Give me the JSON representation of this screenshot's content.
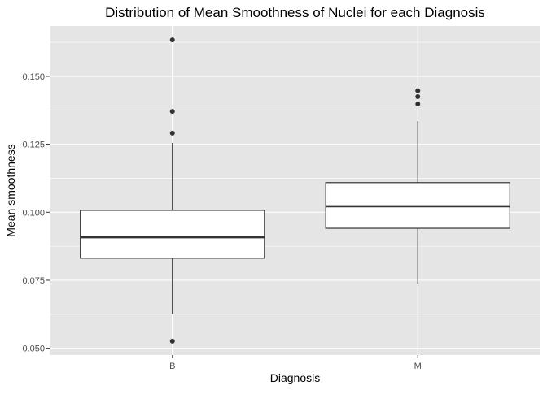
{
  "chart_data": {
    "type": "boxplot",
    "title": "Distribution of Mean Smoothness of Nuclei for each Diagnosis",
    "xlabel": "Diagnosis",
    "ylabel": "Mean smoothness",
    "categories": [
      "B",
      "M"
    ],
    "ylim": [
      0.0475,
      0.1685
    ],
    "y_ticks": [
      0.05,
      0.075,
      0.1,
      0.125,
      0.15
    ],
    "y_tick_labels": [
      "0.050",
      "0.075",
      "0.100",
      "0.125",
      "0.150"
    ],
    "grid": true,
    "legend": "none",
    "boxes": [
      {
        "category": "B",
        "whisker_low": 0.0626,
        "q1": 0.0831,
        "median": 0.0908,
        "q3": 0.1007,
        "whisker_high": 0.1255,
        "outliers": [
          0.0526,
          0.1291,
          0.1371,
          0.1634
        ]
      },
      {
        "category": "M",
        "whisker_low": 0.0737,
        "q1": 0.0941,
        "median": 0.1022,
        "q3": 0.1109,
        "whisker_high": 0.1335,
        "outliers": [
          0.1398,
          0.1425,
          0.1447
        ]
      }
    ],
    "colors": {
      "panel_background": "#e5e5e5",
      "grid": "#ffffff",
      "box_fill": "#ffffff",
      "box_line": "#333333",
      "outlier": "#333333"
    }
  }
}
